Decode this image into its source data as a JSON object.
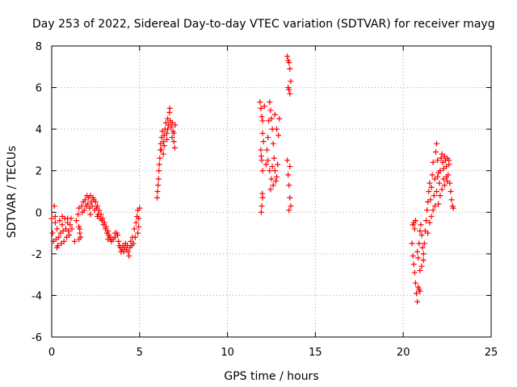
{
  "chart_data": {
    "type": "scatter",
    "title": "Day 253 of 2022, Sidereal Day-to-day VTEC variation (SDTVAR) for receiver mayg",
    "xlabel": "GPS time / hours",
    "ylabel": "SDTVAR / TECUs",
    "xlim": [
      0,
      25
    ],
    "ylim": [
      -6,
      8
    ],
    "xticks": [
      0,
      5,
      10,
      15,
      20,
      25
    ],
    "yticks": [
      -6,
      -4,
      -2,
      0,
      2,
      4,
      6,
      8
    ],
    "xtick_labels": [
      "0",
      "5",
      "10",
      "15",
      "20",
      "25"
    ],
    "ytick_labels": [
      "-6",
      "-4",
      "-2",
      "0",
      "2",
      "4",
      "6",
      "8"
    ],
    "grid": true,
    "marker": "+",
    "color": "#ff0000",
    "series": [
      {
        "points": [
          [
            0.0,
            -0.3
          ],
          [
            0.05,
            -1.0
          ],
          [
            0.1,
            -1.4
          ],
          [
            0.15,
            0.3
          ],
          [
            0.2,
            -0.5
          ],
          [
            0.25,
            -1.3
          ],
          [
            0.3,
            -0.8
          ],
          [
            0.35,
            -1.6
          ],
          [
            0.4,
            -1.2
          ],
          [
            0.45,
            -0.4
          ],
          [
            0.5,
            -1.0
          ],
          [
            0.55,
            -1.5
          ],
          [
            0.6,
            -0.6
          ],
          [
            0.65,
            -0.9
          ],
          [
            0.7,
            -1.4
          ],
          [
            0.75,
            -0.3
          ],
          [
            0.8,
            -0.8
          ],
          [
            0.85,
            -1.2
          ],
          [
            0.9,
            -0.5
          ],
          [
            0.95,
            -0.9
          ],
          [
            1.0,
            -1.1
          ],
          [
            1.05,
            -0.6
          ],
          [
            1.1,
            -0.3
          ],
          [
            1.15,
            -0.8
          ],
          [
            0.2,
            -0.2
          ],
          [
            0.6,
            -0.2
          ],
          [
            0.9,
            -0.3
          ],
          [
            0.3,
            -1.7
          ],
          [
            1.3,
            -1.4
          ],
          [
            1.4,
            -0.4
          ],
          [
            1.5,
            -0.1
          ],
          [
            1.55,
            0.2
          ],
          [
            1.6,
            -0.8
          ],
          [
            1.65,
            -1.2
          ],
          [
            1.7,
            0.3
          ],
          [
            1.75,
            0.0
          ],
          [
            1.8,
            0.5
          ],
          [
            1.85,
            0.1
          ],
          [
            1.9,
            0.6
          ],
          [
            1.95,
            0.3
          ],
          [
            2.0,
            0.8
          ],
          [
            2.05,
            0.4
          ],
          [
            2.1,
            0.7
          ],
          [
            2.15,
            0.2
          ],
          [
            2.2,
            0.8
          ],
          [
            2.25,
            0.5
          ],
          [
            2.3,
            0.3
          ],
          [
            2.35,
            0.7
          ],
          [
            2.4,
            0.6
          ],
          [
            2.45,
            0.1
          ],
          [
            2.5,
            0.5
          ],
          [
            2.55,
            0.2
          ],
          [
            2.6,
            0.3
          ],
          [
            2.65,
            -0.1
          ],
          [
            2.7,
            0.1
          ],
          [
            2.75,
            -0.3
          ],
          [
            2.8,
            -0.1
          ],
          [
            2.85,
            -0.4
          ],
          [
            2.9,
            -0.3
          ],
          [
            2.95,
            -0.6
          ],
          [
            3.0,
            -0.5
          ],
          [
            3.05,
            -0.8
          ],
          [
            3.1,
            -0.7
          ],
          [
            3.15,
            -1.0
          ],
          [
            3.2,
            -0.9
          ],
          [
            3.25,
            -1.1
          ],
          [
            3.3,
            -1.2
          ],
          [
            3.35,
            -1.3
          ],
          [
            3.4,
            -1.4
          ],
          [
            3.5,
            -1.3
          ],
          [
            3.6,
            -1.2
          ],
          [
            3.7,
            -1.0
          ],
          [
            3.75,
            -1.1
          ],
          [
            3.8,
            -1.4
          ],
          [
            3.85,
            -1.6
          ],
          [
            3.9,
            -1.7
          ],
          [
            3.95,
            -1.9
          ],
          [
            4.0,
            -1.8
          ],
          [
            4.05,
            -1.6
          ],
          [
            4.1,
            -1.9
          ],
          [
            4.15,
            -1.7
          ],
          [
            4.2,
            -1.5
          ],
          [
            4.25,
            -1.8
          ],
          [
            4.3,
            -1.6
          ],
          [
            4.35,
            -1.9
          ],
          [
            4.4,
            -2.1
          ],
          [
            4.45,
            -1.7
          ],
          [
            4.5,
            -1.4
          ],
          [
            4.55,
            -1.6
          ],
          [
            4.6,
            -1.2
          ],
          [
            4.65,
            -1.5
          ],
          [
            4.7,
            -0.8
          ],
          [
            4.75,
            -1.2
          ],
          [
            4.8,
            -0.5
          ],
          [
            4.85,
            -0.2
          ],
          [
            4.9,
            0.1
          ],
          [
            4.95,
            -0.3
          ],
          [
            5.0,
            0.2
          ],
          [
            4.9,
            -1.0
          ],
          [
            4.95,
            -0.7
          ],
          [
            1.55,
            -0.7
          ],
          [
            1.6,
            -1.0
          ],
          [
            2.2,
            -0.1
          ],
          [
            2.6,
            -0.2
          ],
          [
            3.2,
            -1.3
          ],
          [
            3.6,
            -1.0
          ],
          [
            1.55,
            -1.3
          ],
          [
            6.0,
            0.7
          ],
          [
            6.02,
            1.0
          ],
          [
            6.05,
            1.3
          ],
          [
            6.08,
            1.6
          ],
          [
            6.1,
            2.0
          ],
          [
            6.12,
            2.3
          ],
          [
            6.15,
            2.6
          ],
          [
            6.18,
            3.0
          ],
          [
            6.2,
            3.3
          ],
          [
            6.25,
            3.6
          ],
          [
            6.3,
            3.9
          ],
          [
            6.35,
            3.4
          ],
          [
            6.4,
            3.7
          ],
          [
            6.45,
            4.0
          ],
          [
            6.5,
            4.3
          ],
          [
            6.55,
            3.8
          ],
          [
            6.6,
            4.5
          ],
          [
            6.65,
            4.2
          ],
          [
            6.7,
            4.8
          ],
          [
            6.72,
            5.0
          ],
          [
            6.75,
            4.4
          ],
          [
            6.8,
            4.1
          ],
          [
            6.85,
            4.3
          ],
          [
            6.9,
            3.9
          ],
          [
            6.95,
            3.4
          ],
          [
            7.0,
            3.1
          ],
          [
            7.02,
            4.2
          ],
          [
            6.4,
            3.2
          ],
          [
            6.55,
            3.5
          ],
          [
            6.85,
            3.6
          ],
          [
            6.25,
            3.0
          ],
          [
            6.35,
            2.8
          ],
          [
            6.6,
            4.0
          ],
          [
            6.95,
            3.8
          ],
          [
            11.85,
            5.3
          ],
          [
            11.9,
            5.0
          ],
          [
            11.95,
            4.6
          ],
          [
            12.0,
            4.4
          ],
          [
            11.9,
            3.0
          ],
          [
            11.95,
            2.5
          ],
          [
            12.0,
            2.0
          ],
          [
            11.92,
            2.7
          ],
          [
            12.05,
            3.4
          ],
          [
            11.98,
            0.9
          ],
          [
            12.0,
            0.7
          ],
          [
            11.95,
            0.3
          ],
          [
            11.92,
            0.0
          ],
          [
            12.0,
            3.8
          ],
          [
            12.1,
            5.1
          ],
          [
            12.2,
            2.3
          ],
          [
            12.25,
            3.0
          ],
          [
            12.3,
            3.6
          ],
          [
            12.35,
            4.4
          ],
          [
            12.4,
            5.3
          ],
          [
            12.45,
            4.9
          ],
          [
            12.5,
            4.5
          ],
          [
            12.55,
            4.0
          ],
          [
            12.6,
            3.3
          ],
          [
            12.65,
            2.6
          ],
          [
            12.7,
            2.0
          ],
          [
            12.75,
            1.5
          ],
          [
            12.8,
            1.7
          ],
          [
            12.85,
            2.3
          ],
          [
            12.9,
            3.7
          ],
          [
            12.95,
            4.5
          ],
          [
            12.4,
            2.0
          ],
          [
            12.5,
            1.6
          ],
          [
            12.6,
            1.3
          ],
          [
            12.7,
            4.7
          ],
          [
            12.3,
            2.5
          ],
          [
            12.55,
            2.2
          ],
          [
            12.8,
            4.0
          ],
          [
            12.45,
            1.1
          ],
          [
            13.4,
            7.5
          ],
          [
            13.45,
            7.3
          ],
          [
            13.5,
            7.2
          ],
          [
            13.55,
            6.9
          ],
          [
            13.45,
            6.0
          ],
          [
            13.5,
            5.9
          ],
          [
            13.55,
            5.7
          ],
          [
            13.6,
            6.3
          ],
          [
            13.4,
            2.5
          ],
          [
            13.45,
            1.8
          ],
          [
            13.5,
            1.3
          ],
          [
            13.55,
            0.7
          ],
          [
            13.6,
            0.3
          ],
          [
            13.5,
            0.1
          ],
          [
            13.55,
            2.2
          ],
          [
            20.55,
            -0.6
          ],
          [
            20.6,
            -0.5
          ],
          [
            20.65,
            -0.8
          ],
          [
            20.7,
            -0.4
          ],
          [
            20.5,
            -1.5
          ],
          [
            20.55,
            -2.1
          ],
          [
            20.6,
            -2.5
          ],
          [
            20.65,
            -2.9
          ],
          [
            20.7,
            -3.4
          ],
          [
            20.75,
            -3.9
          ],
          [
            20.8,
            -4.3
          ],
          [
            20.85,
            -3.6
          ],
          [
            20.9,
            -3.7
          ],
          [
            20.95,
            -3.8
          ],
          [
            20.8,
            -1.9
          ],
          [
            20.85,
            -2.2
          ],
          [
            20.9,
            -1.5
          ],
          [
            20.95,
            -0.9
          ],
          [
            21.0,
            -0.6
          ],
          [
            21.05,
            -1.1
          ],
          [
            21.1,
            -1.7
          ],
          [
            21.15,
            -2.3
          ],
          [
            21.2,
            -1.5
          ],
          [
            21.25,
            -0.9
          ],
          [
            21.3,
            -0.4
          ],
          [
            21.35,
            0.1
          ],
          [
            21.4,
            0.5
          ],
          [
            21.45,
            1.0
          ],
          [
            21.5,
            1.4
          ],
          [
            21.55,
            0.6
          ],
          [
            21.6,
            1.2
          ],
          [
            21.65,
            1.8
          ],
          [
            21.7,
            2.4
          ],
          [
            21.75,
            0.8
          ],
          [
            21.8,
            1.6
          ],
          [
            21.85,
            2.9
          ],
          [
            21.9,
            3.3
          ],
          [
            21.95,
            2.5
          ],
          [
            22.0,
            1.9
          ],
          [
            22.05,
            1.4
          ],
          [
            22.1,
            2.0
          ],
          [
            22.15,
            2.6
          ],
          [
            22.2,
            2.8
          ],
          [
            22.25,
            2.4
          ],
          [
            22.3,
            2.1
          ],
          [
            22.35,
            2.7
          ],
          [
            22.4,
            2.5
          ],
          [
            22.45,
            2.2
          ],
          [
            22.5,
            2.6
          ],
          [
            22.55,
            1.8
          ],
          [
            22.6,
            2.3
          ],
          [
            22.65,
            1.4
          ],
          [
            22.7,
            1.0
          ],
          [
            22.75,
            0.6
          ],
          [
            22.8,
            0.3
          ],
          [
            22.85,
            0.2
          ],
          [
            22.0,
            0.4
          ],
          [
            22.1,
            0.8
          ],
          [
            21.9,
            1.0
          ],
          [
            22.2,
            1.1
          ],
          [
            21.5,
            -0.5
          ],
          [
            21.4,
            -1.0
          ],
          [
            21.6,
            -0.2
          ],
          [
            21.7,
            0.1
          ],
          [
            21.8,
            0.3
          ],
          [
            22.35,
            1.3
          ],
          [
            22.45,
            1.7
          ],
          [
            20.95,
            -2.8
          ],
          [
            21.05,
            -2.6
          ],
          [
            21.15,
            -2.0
          ],
          [
            22.6,
            2.5
          ],
          [
            22.5,
            1.5
          ],
          [
            21.95,
            1.7
          ],
          [
            22.3,
            1.6
          ]
        ]
      }
    ]
  }
}
